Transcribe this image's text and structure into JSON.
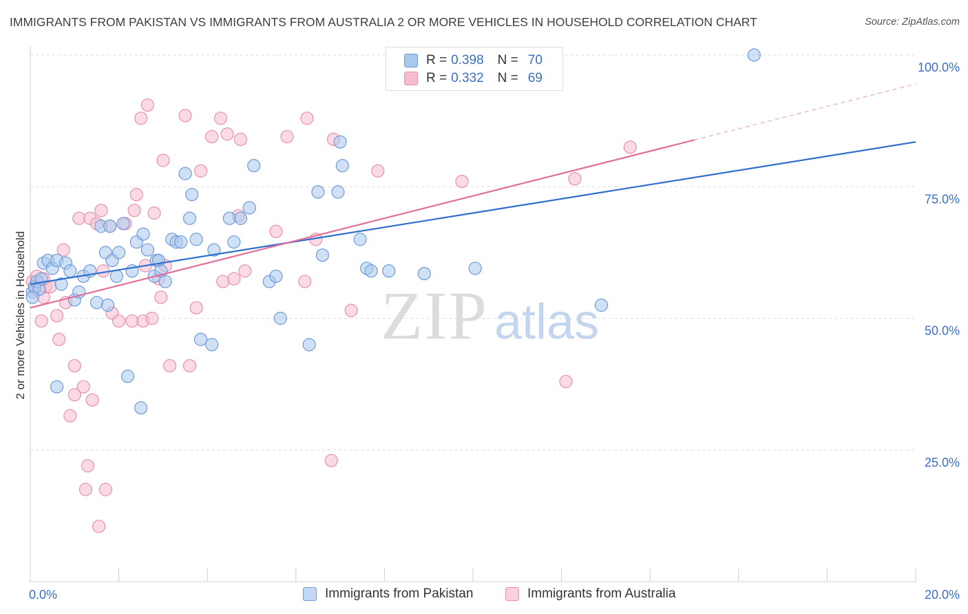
{
  "title": "IMMIGRANTS FROM PAKISTAN VS IMMIGRANTS FROM AUSTRALIA 2 OR MORE VEHICLES IN HOUSEHOLD CORRELATION CHART",
  "source": "Source: ZipAtlas.com",
  "watermark": {
    "zip": "ZIP",
    "atlas": "atlas"
  },
  "colors": {
    "blue_fill": "#a9c8ef",
    "blue_stroke": "#6d9ad6",
    "blue_line": "#2f6fcc",
    "pink_fill": "#f6bdd0",
    "pink_stroke": "#e88fae",
    "pink_line": "#e06e98",
    "axis_text": "#3a6fc4",
    "grid": "#dcdcdc"
  },
  "legend": {
    "rows": [
      {
        "r_label": "R =",
        "r_value": "0.398",
        "n_label": "N =",
        "n_value": "70"
      },
      {
        "r_label": "R =",
        "r_value": "0.332",
        "n_label": "N =",
        "n_value": "69"
      }
    ]
  },
  "bottom_legend": [
    "Immigrants from Pakistan",
    "Immigrants from Australia"
  ],
  "chart_data": {
    "type": "scatter",
    "title": "IMMIGRANTS FROM PAKISTAN VS IMMIGRANTS FROM AUSTRALIA 2 OR MORE VEHICLES IN HOUSEHOLD CORRELATION CHART",
    "xlabel": "",
    "ylabel": "2 or more Vehicles in Household",
    "xlim": [
      0,
      20
    ],
    "ylim": [
      0,
      102
    ],
    "x_tick_labels": [
      {
        "value": 0,
        "label": "0.0%"
      },
      {
        "value": 20,
        "label": "20.0%"
      }
    ],
    "y_tick_labels": [
      {
        "value": 100,
        "label": "100.0%"
      },
      {
        "value": 75,
        "label": "75.0%"
      },
      {
        "value": 50,
        "label": "50.0%"
      },
      {
        "value": 25,
        "label": "25.0%"
      }
    ],
    "series": [
      {
        "name": "Immigrants from Pakistan",
        "color": "#6d9ad6",
        "r": 0.398,
        "n": 70,
        "trend": {
          "x0": 0,
          "y0": 56.5,
          "x1": 20,
          "y1": 83.5,
          "dashed_from": null
        },
        "points": [
          [
            0.05,
            55
          ],
          [
            0.1,
            56
          ],
          [
            0.15,
            57
          ],
          [
            0.2,
            55.5
          ],
          [
            0.25,
            57.5
          ],
          [
            0.3,
            60.5
          ],
          [
            0.4,
            61
          ],
          [
            0.5,
            59.5
          ],
          [
            0.6,
            61
          ],
          [
            0.7,
            56.5
          ],
          [
            0.8,
            60.5
          ],
          [
            0.9,
            59
          ],
          [
            1.0,
            53.5
          ],
          [
            1.1,
            55
          ],
          [
            1.2,
            58
          ],
          [
            1.35,
            59
          ],
          [
            1.5,
            53
          ],
          [
            1.6,
            67.5
          ],
          [
            1.7,
            62.5
          ],
          [
            1.8,
            67.5
          ],
          [
            1.75,
            52.5
          ],
          [
            1.85,
            61
          ],
          [
            1.95,
            58
          ],
          [
            2.0,
            62.5
          ],
          [
            2.1,
            68
          ],
          [
            2.3,
            59
          ],
          [
            2.4,
            64.5
          ],
          [
            2.55,
            66
          ],
          [
            2.65,
            63
          ],
          [
            2.8,
            58
          ],
          [
            2.85,
            61
          ],
          [
            2.9,
            61
          ],
          [
            2.95,
            59
          ],
          [
            3.05,
            57
          ],
          [
            3.2,
            65
          ],
          [
            3.3,
            64.5
          ],
          [
            3.4,
            64.5
          ],
          [
            3.5,
            77.5
          ],
          [
            3.6,
            69
          ],
          [
            3.65,
            73.5
          ],
          [
            3.75,
            65
          ],
          [
            3.85,
            46
          ],
          [
            4.1,
            45
          ],
          [
            4.15,
            63
          ],
          [
            4.5,
            69
          ],
          [
            4.6,
            64.5
          ],
          [
            4.75,
            69
          ],
          [
            4.95,
            71
          ],
          [
            5.05,
            79
          ],
          [
            5.4,
            57
          ],
          [
            5.55,
            58
          ],
          [
            5.65,
            50
          ],
          [
            6.3,
            45
          ],
          [
            6.6,
            62
          ],
          [
            6.5,
            74
          ],
          [
            6.95,
            74
          ],
          [
            7.0,
            83.5
          ],
          [
            7.05,
            79
          ],
          [
            7.45,
            65
          ],
          [
            7.6,
            59.5
          ],
          [
            7.7,
            59
          ],
          [
            8.1,
            59
          ],
          [
            8.9,
            58.5
          ],
          [
            10.05,
            59.5
          ],
          [
            12.9,
            52.5
          ],
          [
            16.35,
            100
          ],
          [
            0.6,
            37
          ],
          [
            2.2,
            39
          ],
          [
            2.5,
            33
          ],
          [
            0.05,
            54
          ]
        ]
      },
      {
        "name": "Immigrants from Australia",
        "color": "#e88fae",
        "r": 0.332,
        "n": 69,
        "trend": {
          "x0": 0,
          "y0": 52,
          "x1": 20,
          "y1": 94.5,
          "dashed_from": 15
        },
        "points": [
          [
            0.05,
            57
          ],
          [
            0.1,
            55.5
          ],
          [
            0.15,
            58
          ],
          [
            0.25,
            49.5
          ],
          [
            0.3,
            54
          ],
          [
            0.35,
            56
          ],
          [
            0.45,
            56
          ],
          [
            0.6,
            50.5
          ],
          [
            0.65,
            46
          ],
          [
            0.75,
            63
          ],
          [
            0.8,
            53
          ],
          [
            0.9,
            31.5
          ],
          [
            1.0,
            35.5
          ],
          [
            1.0,
            41
          ],
          [
            1.1,
            69
          ],
          [
            1.2,
            37
          ],
          [
            1.25,
            17.5
          ],
          [
            1.3,
            22
          ],
          [
            1.35,
            69
          ],
          [
            1.4,
            34.5
          ],
          [
            1.5,
            68
          ],
          [
            1.55,
            10.5
          ],
          [
            1.6,
            70.5
          ],
          [
            1.65,
            59
          ],
          [
            1.7,
            17.5
          ],
          [
            1.8,
            67.5
          ],
          [
            1.85,
            51
          ],
          [
            2.0,
            49.5
          ],
          [
            2.15,
            68
          ],
          [
            2.3,
            49.5
          ],
          [
            2.35,
            70.5
          ],
          [
            2.4,
            73.5
          ],
          [
            2.5,
            88
          ],
          [
            2.55,
            49.5
          ],
          [
            2.6,
            60
          ],
          [
            2.65,
            90.5
          ],
          [
            2.75,
            50
          ],
          [
            2.8,
            70
          ],
          [
            2.9,
            57.5
          ],
          [
            2.95,
            54
          ],
          [
            3.0,
            80
          ],
          [
            3.15,
            41
          ],
          [
            3.5,
            88.5
          ],
          [
            3.6,
            41
          ],
          [
            3.75,
            52
          ],
          [
            3.85,
            78
          ],
          [
            4.1,
            84.5
          ],
          [
            4.3,
            88
          ],
          [
            4.35,
            57
          ],
          [
            4.45,
            85
          ],
          [
            4.6,
            57.5
          ],
          [
            4.7,
            69.5
          ],
          [
            4.75,
            84
          ],
          [
            4.85,
            59
          ],
          [
            5.55,
            66.5
          ],
          [
            5.8,
            84.5
          ],
          [
            6.2,
            57
          ],
          [
            6.25,
            88
          ],
          [
            6.45,
            65
          ],
          [
            6.85,
            84
          ],
          [
            6.8,
            23
          ],
          [
            7.25,
            51.5
          ],
          [
            7.85,
            78
          ],
          [
            9.75,
            76
          ],
          [
            12.1,
            38
          ],
          [
            12.3,
            76.5
          ],
          [
            13.55,
            82.5
          ],
          [
            0.3,
            57.5
          ],
          [
            3.05,
            60
          ]
        ]
      }
    ]
  }
}
